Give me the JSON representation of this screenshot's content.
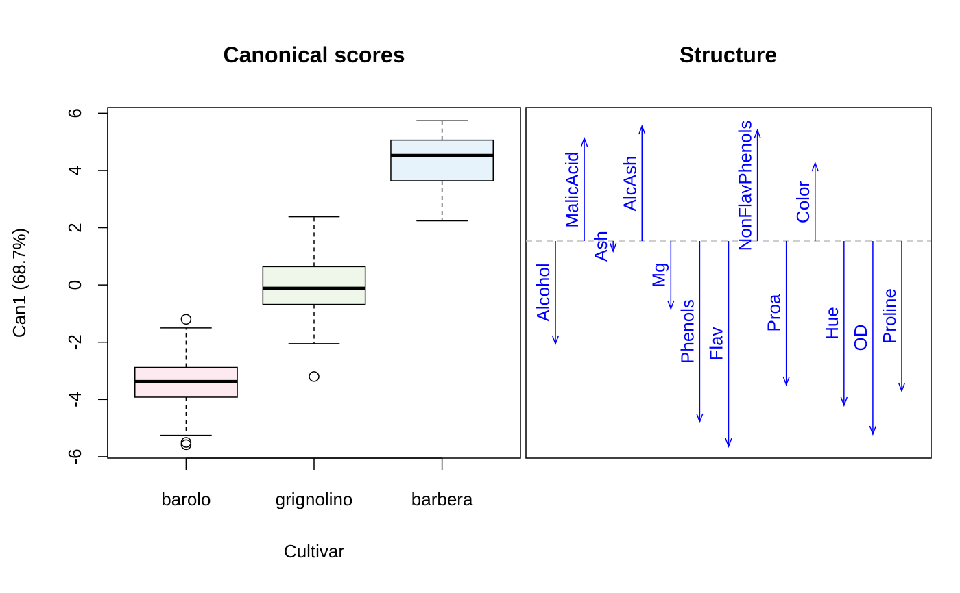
{
  "chart_data": [
    {
      "type": "box",
      "title": "Canonical scores",
      "xlabel": "Cultivar",
      "ylabel": "Can1 (68.7%)",
      "ylim": [
        -6.05,
        6.2
      ],
      "yticks": [
        -6,
        -4,
        -2,
        0,
        2,
        4,
        6
      ],
      "categories": [
        "barolo",
        "grignolino",
        "barbera"
      ],
      "boxes": [
        {
          "name": "barolo",
          "lower_whisker": -5.25,
          "q1": -3.92,
          "median": -3.38,
          "q3": -2.88,
          "upper_whisker": -1.5,
          "outliers": [
            -1.2,
            -5.5,
            -5.58
          ],
          "fill": "#fdeaf0"
        },
        {
          "name": "grignolino",
          "lower_whisker": -2.05,
          "q1": -0.68,
          "median": -0.12,
          "q3": 0.64,
          "upper_whisker": 2.38,
          "outliers": [
            -3.2
          ],
          "fill": "#eef7ea"
        },
        {
          "name": "barbera",
          "lower_whisker": 2.24,
          "q1": 3.64,
          "median": 4.52,
          "q3": 5.06,
          "upper_whisker": 5.74,
          "outliers": [],
          "fill": "#e6f3fb"
        }
      ]
    },
    {
      "type": "structure",
      "title": "Structure",
      "color": "#0000ff",
      "reference_line_color": "#bebebe",
      "reference_value": 0,
      "ylim": [
        -1,
        1
      ],
      "variables": [
        {
          "name": "Alcohol",
          "value": -0.5
        },
        {
          "name": "MalicAcid",
          "value": 0.5
        },
        {
          "name": "Ash",
          "value": -0.05
        },
        {
          "name": "AlcAsh",
          "value": 0.56
        },
        {
          "name": "Mg",
          "value": -0.33
        },
        {
          "name": "Phenols",
          "value": -0.88
        },
        {
          "name": "Flav",
          "value": -1.0
        },
        {
          "name": "NonFlavPhenols",
          "value": 0.54
        },
        {
          "name": "Proa",
          "value": -0.7
        },
        {
          "name": "Color",
          "value": 0.38
        },
        {
          "name": "Hue",
          "value": -0.8
        },
        {
          "name": "OD",
          "value": -0.94
        },
        {
          "name": "Proline",
          "value": -0.73
        }
      ]
    }
  ]
}
